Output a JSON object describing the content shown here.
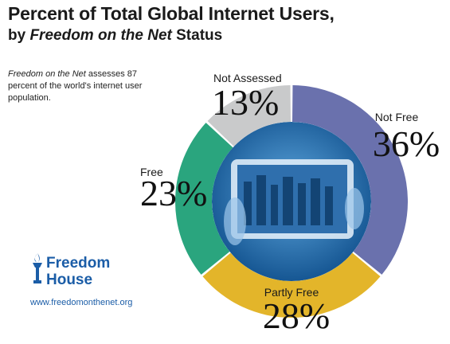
{
  "title": "Percent of Total Global Internet Users,",
  "subtitle_pre": "by ",
  "subtitle_em": "Freedom on the Net",
  "subtitle_post": " Status",
  "note_em": "Freedom on the Net",
  "note_rest": " assesses 87 percent of the world's internet user population.",
  "logo_line1": "Freedom",
  "logo_line2": "House",
  "website": "www.freedomonthenet.org",
  "colors": {
    "not_free": "#6a71ad",
    "partly_free": "#e3b52a",
    "free": "#2aa57e",
    "not_assessed": "#c9cacb",
    "brand": "#1b5da7"
  },
  "chart_data": {
    "type": "pie",
    "title": "Percent of Total Global Internet Users, by Freedom on the Net Status",
    "unit": "%",
    "slices": [
      {
        "label": "Not Free",
        "value": 36,
        "display": "36%",
        "color": "#6a71ad"
      },
      {
        "label": "Partly Free",
        "value": 28,
        "display": "28%",
        "color": "#e3b52a"
      },
      {
        "label": "Free",
        "value": 23,
        "display": "23%",
        "color": "#2aa57e"
      },
      {
        "label": "Not Assessed",
        "value": 13,
        "display": "13%",
        "color": "#c9cacb"
      }
    ]
  }
}
